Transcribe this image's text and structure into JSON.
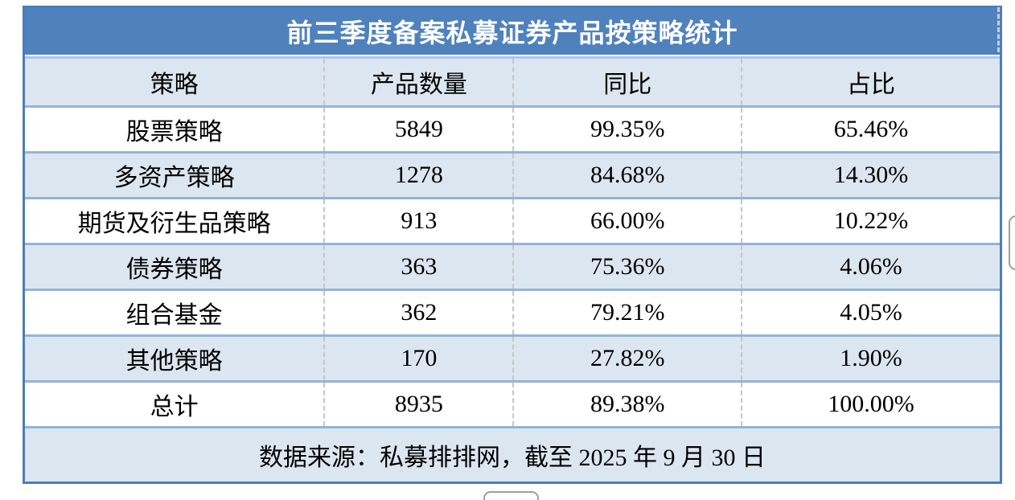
{
  "chart_data": {
    "type": "table",
    "title": "前三季度备案私募证券产品按策略统计",
    "columns": [
      "策略",
      "产品数量",
      "同比",
      "占比"
    ],
    "rows": [
      [
        "股票策略",
        "5849",
        "99.35%",
        "65.46%"
      ],
      [
        "多资产策略",
        "1278",
        "84.68%",
        "14.30%"
      ],
      [
        "期货及衍生品策略",
        "913",
        "66.00%",
        "10.22%"
      ],
      [
        "债券策略",
        "363",
        "75.36%",
        "4.06%"
      ],
      [
        "组合基金",
        "362",
        "79.21%",
        "4.05%"
      ],
      [
        "其他策略",
        "170",
        "27.82%",
        "1.90%"
      ],
      [
        "总计",
        "8935",
        "89.38%",
        "100.00%"
      ]
    ],
    "footer": "数据来源：私募排排网，截至 2025 年 9 月 30 日",
    "layout": {
      "banded_rows": true,
      "column_dividers": "dashed",
      "row_dividers": "solid"
    }
  },
  "colors": {
    "title_bg": "#4f81bd",
    "title_text": "#ffffff",
    "band_bg": "#dce6f1",
    "row_divider": "#95b3d7",
    "outer_border": "#4a7ebb",
    "column_dash": "#c6c6c6",
    "body_text": "#000000"
  }
}
